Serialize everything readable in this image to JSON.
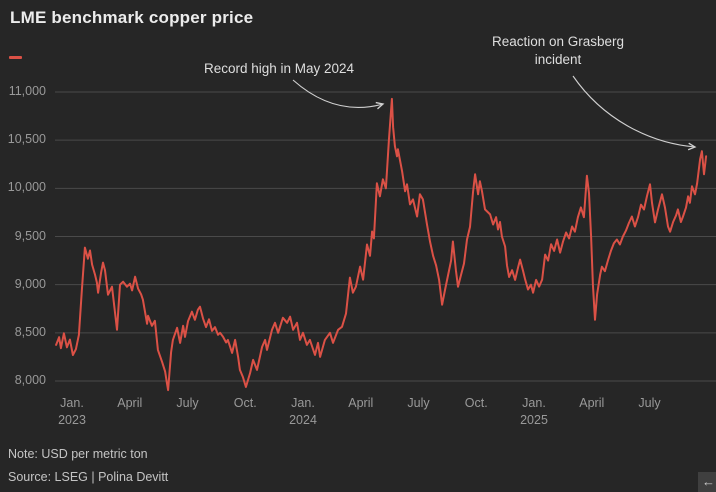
{
  "header": {
    "title": "LME benchmark copper price"
  },
  "legend": {
    "series_color": "#db5146"
  },
  "annotations": {
    "record_high": {
      "text": "Record high in May 2024"
    },
    "grasberg": {
      "text": "Reaction on Grasberg incident"
    }
  },
  "footer": {
    "note": "Note: USD per metric ton",
    "source": "Source: LSEG | Polina Devitt"
  },
  "scroll_button": {
    "icon": "left-arrow",
    "glyph": "←"
  },
  "chart_data": {
    "type": "line",
    "title": "LME benchmark copper price",
    "ylabel": "USD per metric ton",
    "grid": "horizontal",
    "legend_position": "top-left",
    "line_color": "#db5146",
    "grid_color": "#4a4a4a",
    "ylim": [
      8000,
      11000
    ],
    "xlim": [
      2022.93,
      2025.77
    ],
    "y_ticks": [
      {
        "value": 11000,
        "label": "11,000"
      },
      {
        "value": 10500,
        "label": "10,500"
      },
      {
        "value": 10000,
        "label": "10,000"
      },
      {
        "value": 9500,
        "label": "9,500"
      },
      {
        "value": 9000,
        "label": "9,000"
      },
      {
        "value": 8500,
        "label": "8,500"
      },
      {
        "value": 8000,
        "label": "8,000"
      }
    ],
    "x_ticks": [
      {
        "pos": 2023.0,
        "label": "Jan.",
        "year": "2023"
      },
      {
        "pos": 2023.25,
        "label": "April"
      },
      {
        "pos": 2023.5,
        "label": "July"
      },
      {
        "pos": 2023.75,
        "label": "Oct."
      },
      {
        "pos": 2024.0,
        "label": "Jan.",
        "year": "2024"
      },
      {
        "pos": 2024.25,
        "label": "April"
      },
      {
        "pos": 2024.5,
        "label": "July"
      },
      {
        "pos": 2024.75,
        "label": "Oct."
      },
      {
        "pos": 2025.0,
        "label": "Jan.",
        "year": "2025"
      },
      {
        "pos": 2025.25,
        "label": "April"
      },
      {
        "pos": 2025.5,
        "label": "July"
      }
    ],
    "series": [
      {
        "name": "LME benchmark copper price",
        "unit": "USD per metric ton",
        "points": [
          [
            2022.931,
            8375
          ],
          [
            2022.944,
            8455
          ],
          [
            2022.952,
            8340
          ],
          [
            2022.965,
            8495
          ],
          [
            2022.978,
            8350
          ],
          [
            2022.991,
            8430
          ],
          [
            2023.004,
            8270
          ],
          [
            2023.017,
            8330
          ],
          [
            2023.03,
            8480
          ],
          [
            2023.043,
            8950
          ],
          [
            2023.056,
            9385
          ],
          [
            2023.069,
            9270
          ],
          [
            2023.078,
            9355
          ],
          [
            2023.087,
            9208
          ],
          [
            2023.1,
            9100
          ],
          [
            2023.108,
            9021
          ],
          [
            2023.113,
            8917
          ],
          [
            2023.126,
            9125
          ],
          [
            2023.134,
            9229
          ],
          [
            2023.143,
            9150
          ],
          [
            2023.156,
            8896
          ],
          [
            2023.173,
            8979
          ],
          [
            2023.182,
            8800
          ],
          [
            2023.195,
            8531
          ],
          [
            2023.208,
            9000
          ],
          [
            2023.221,
            9031
          ],
          [
            2023.238,
            8979
          ],
          [
            2023.251,
            9010
          ],
          [
            2023.26,
            8940
          ],
          [
            2023.273,
            9083
          ],
          [
            2023.286,
            8958
          ],
          [
            2023.299,
            8900
          ],
          [
            2023.307,
            8844
          ],
          [
            2023.325,
            8594
          ],
          [
            2023.329,
            8677
          ],
          [
            2023.346,
            8573
          ],
          [
            2023.359,
            8625
          ],
          [
            2023.372,
            8323
          ],
          [
            2023.39,
            8198
          ],
          [
            2023.403,
            8100
          ],
          [
            2023.411,
            7979
          ],
          [
            2023.416,
            7906
          ],
          [
            2023.429,
            8300
          ],
          [
            2023.437,
            8427
          ],
          [
            2023.455,
            8552
          ],
          [
            2023.468,
            8396
          ],
          [
            2023.481,
            8573
          ],
          [
            2023.489,
            8458
          ],
          [
            2023.502,
            8620
          ],
          [
            2023.519,
            8719
          ],
          [
            2023.532,
            8635
          ],
          [
            2023.545,
            8740
          ],
          [
            2023.554,
            8771
          ],
          [
            2023.567,
            8650
          ],
          [
            2023.58,
            8560
          ],
          [
            2023.593,
            8640
          ],
          [
            2023.606,
            8520
          ],
          [
            2023.619,
            8560
          ],
          [
            2023.632,
            8480
          ],
          [
            2023.641,
            8500
          ],
          [
            2023.654,
            8458
          ],
          [
            2023.667,
            8400
          ],
          [
            2023.675,
            8427
          ],
          [
            2023.693,
            8292
          ],
          [
            2023.706,
            8427
          ],
          [
            2023.719,
            8250
          ],
          [
            2023.727,
            8115
          ],
          [
            2023.74,
            8042
          ],
          [
            2023.753,
            7938
          ],
          [
            2023.771,
            8083
          ],
          [
            2023.784,
            8219
          ],
          [
            2023.801,
            8115
          ],
          [
            2023.823,
            8354
          ],
          [
            2023.836,
            8427
          ],
          [
            2023.844,
            8323
          ],
          [
            2023.866,
            8531
          ],
          [
            2023.879,
            8604
          ],
          [
            2023.892,
            8500
          ],
          [
            2023.913,
            8656
          ],
          [
            2023.931,
            8604
          ],
          [
            2023.944,
            8667
          ],
          [
            2023.957,
            8531
          ],
          [
            2023.974,
            8604
          ],
          [
            2023.987,
            8427
          ],
          [
            2024.0,
            8500
          ],
          [
            2024.017,
            8375
          ],
          [
            2024.03,
            8427
          ],
          [
            2024.052,
            8271
          ],
          [
            2024.065,
            8396
          ],
          [
            2024.074,
            8250
          ],
          [
            2024.095,
            8427
          ],
          [
            2024.117,
            8500
          ],
          [
            2024.13,
            8396
          ],
          [
            2024.152,
            8531
          ],
          [
            2024.169,
            8563
          ],
          [
            2024.186,
            8700
          ],
          [
            2024.203,
            9073
          ],
          [
            2024.216,
            8917
          ],
          [
            2024.229,
            8979
          ],
          [
            2024.247,
            9188
          ],
          [
            2024.26,
            9052
          ],
          [
            2024.277,
            9417
          ],
          [
            2024.29,
            9300
          ],
          [
            2024.299,
            9552
          ],
          [
            2024.307,
            9480
          ],
          [
            2024.32,
            10052
          ],
          [
            2024.333,
            9917
          ],
          [
            2024.346,
            10094
          ],
          [
            2024.359,
            10000
          ],
          [
            2024.372,
            10500
          ],
          [
            2024.385,
            10928
          ],
          [
            2024.39,
            10636
          ],
          [
            2024.398,
            10438
          ],
          [
            2024.407,
            10333
          ],
          [
            2024.411,
            10406
          ],
          [
            2024.429,
            10177
          ],
          [
            2024.442,
            9969
          ],
          [
            2024.45,
            10042
          ],
          [
            2024.463,
            9833
          ],
          [
            2024.476,
            9885
          ],
          [
            2024.494,
            9708
          ],
          [
            2024.506,
            9938
          ],
          [
            2024.519,
            9885
          ],
          [
            2024.537,
            9625
          ],
          [
            2024.55,
            9448
          ],
          [
            2024.563,
            9300
          ],
          [
            2024.576,
            9200
          ],
          [
            2024.589,
            9050
          ],
          [
            2024.602,
            8792
          ],
          [
            2024.615,
            8950
          ],
          [
            2024.628,
            9100
          ],
          [
            2024.641,
            9250
          ],
          [
            2024.649,
            9448
          ],
          [
            2024.662,
            9150
          ],
          [
            2024.671,
            8979
          ],
          [
            2024.684,
            9100
          ],
          [
            2024.697,
            9220
          ],
          [
            2024.71,
            9469
          ],
          [
            2024.723,
            9600
          ],
          [
            2024.736,
            9958
          ],
          [
            2024.745,
            10146
          ],
          [
            2024.758,
            9938
          ],
          [
            2024.766,
            10073
          ],
          [
            2024.775,
            9969
          ],
          [
            2024.788,
            9781
          ],
          [
            2024.81,
            9729
          ],
          [
            2024.823,
            9625
          ],
          [
            2024.836,
            9700
          ],
          [
            2024.844,
            9573
          ],
          [
            2024.853,
            9650
          ],
          [
            2024.861,
            9500
          ],
          [
            2024.875,
            9396
          ],
          [
            2024.883,
            9200
          ],
          [
            2024.892,
            9080
          ],
          [
            2024.905,
            9150
          ],
          [
            2024.918,
            9050
          ],
          [
            2024.931,
            9180
          ],
          [
            2024.94,
            9260
          ],
          [
            2024.952,
            9150
          ],
          [
            2024.961,
            9060
          ],
          [
            2024.974,
            8950
          ],
          [
            2024.987,
            9000
          ],
          [
            2024.996,
            8917
          ],
          [
            2025.009,
            9050
          ],
          [
            2025.022,
            8980
          ],
          [
            2025.035,
            9052
          ],
          [
            2025.048,
            9312
          ],
          [
            2025.061,
            9250
          ],
          [
            2025.074,
            9420
          ],
          [
            2025.087,
            9350
          ],
          [
            2025.1,
            9469
          ],
          [
            2025.113,
            9333
          ],
          [
            2025.126,
            9450
          ],
          [
            2025.139,
            9542
          ],
          [
            2025.152,
            9480
          ],
          [
            2025.165,
            9604
          ],
          [
            2025.177,
            9550
          ],
          [
            2025.19,
            9700
          ],
          [
            2025.203,
            9802
          ],
          [
            2025.216,
            9700
          ],
          [
            2025.229,
            10130
          ],
          [
            2025.238,
            9950
          ],
          [
            2025.247,
            9500
          ],
          [
            2025.255,
            9000
          ],
          [
            2025.264,
            8635
          ],
          [
            2025.273,
            8900
          ],
          [
            2025.286,
            9100
          ],
          [
            2025.294,
            9187
          ],
          [
            2025.307,
            9140
          ],
          [
            2025.32,
            9250
          ],
          [
            2025.333,
            9350
          ],
          [
            2025.346,
            9430
          ],
          [
            2025.359,
            9469
          ],
          [
            2025.372,
            9417
          ],
          [
            2025.385,
            9500
          ],
          [
            2025.398,
            9560
          ],
          [
            2025.411,
            9640
          ],
          [
            2025.424,
            9708
          ],
          [
            2025.437,
            9604
          ],
          [
            2025.45,
            9700
          ],
          [
            2025.463,
            9830
          ],
          [
            2025.476,
            9780
          ],
          [
            2025.489,
            9920
          ],
          [
            2025.502,
            10042
          ],
          [
            2025.511,
            9850
          ],
          [
            2025.524,
            9646
          ],
          [
            2025.537,
            9780
          ],
          [
            2025.554,
            9938
          ],
          [
            2025.567,
            9800
          ],
          [
            2025.58,
            9604
          ],
          [
            2025.589,
            9550
          ],
          [
            2025.602,
            9650
          ],
          [
            2025.615,
            9720
          ],
          [
            2025.623,
            9781
          ],
          [
            2025.636,
            9650
          ],
          [
            2025.645,
            9708
          ],
          [
            2025.658,
            9800
          ],
          [
            2025.667,
            9917
          ],
          [
            2025.675,
            9850
          ],
          [
            2025.684,
            10021
          ],
          [
            2025.697,
            9938
          ],
          [
            2025.706,
            10050
          ],
          [
            2025.719,
            10302
          ],
          [
            2025.727,
            10385
          ],
          [
            2025.736,
            10146
          ],
          [
            2025.745,
            10333
          ]
        ]
      }
    ]
  }
}
